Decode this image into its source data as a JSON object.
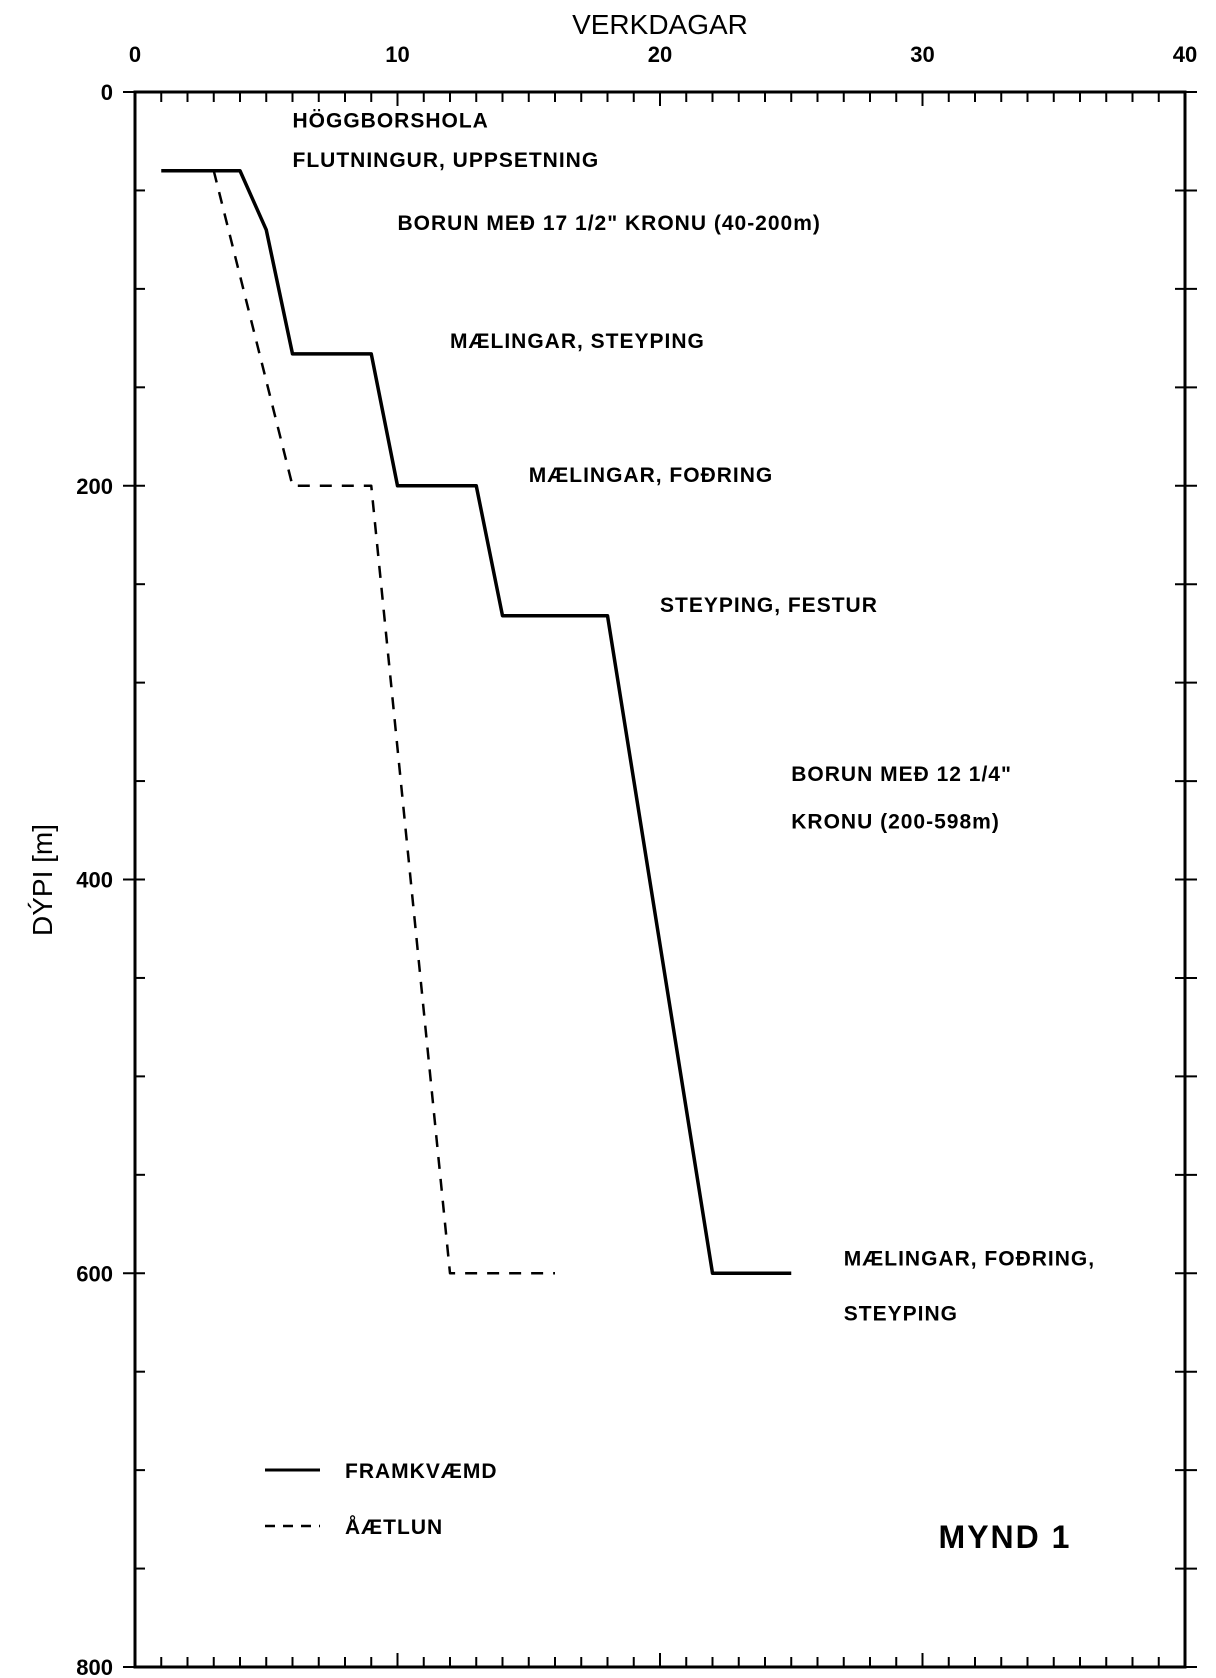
{
  "chart_data": {
    "type": "line",
    "title": "",
    "xlabel": "VERKDAGAR",
    "ylabel": "DÝPI [m]",
    "xlim": [
      0,
      40
    ],
    "ylim": [
      0,
      800
    ],
    "y_inverted": true,
    "x_axis_position": "top",
    "x_ticks": [
      0,
      10,
      20,
      30,
      40
    ],
    "y_ticks": [
      0,
      200,
      400,
      600,
      800
    ],
    "x_tick_labels": [
      "0",
      "10",
      "20",
      "30",
      "40"
    ],
    "y_tick_labels": [
      "0",
      "200",
      "400",
      "600",
      "800"
    ],
    "grid": false,
    "legend_position": "bottom-left",
    "series": [
      {
        "name": "FRAMKVÆMD",
        "style": "solid",
        "x": [
          1,
          4,
          5,
          6,
          9,
          10,
          13,
          14,
          18,
          22,
          25
        ],
        "y": [
          40,
          40,
          70,
          133,
          133,
          200,
          200,
          266,
          266,
          600,
          600
        ]
      },
      {
        "name": "ÅÆTLUN",
        "style": "dashed",
        "x": [
          3,
          6,
          9,
          12,
          16
        ],
        "y": [
          40,
          200,
          200,
          600,
          600
        ]
      }
    ],
    "annotations": [
      {
        "text": "HÖGGBORSHOLA",
        "x": 6,
        "y": 18
      },
      {
        "text": "FLUTNINGUR, UPPSETNING",
        "x": 6,
        "y": 38
      },
      {
        "text": "BORUN MEÐ 17 1/2\" KRONU (40-200m)",
        "x": 10,
        "y": 70
      },
      {
        "text": "MÆLINGAR, STEYPING",
        "x": 12,
        "y": 130
      },
      {
        "text": "MÆLINGAR, FOÐRING",
        "x": 15,
        "y": 198
      },
      {
        "text": "STEYPING, FESTUR",
        "x": 20,
        "y": 264
      },
      {
        "text": "BORUN MEÐ 12 1/4\"",
        "x": 25,
        "y": 350
      },
      {
        "text": "KRONU (200-598m)",
        "x": 25,
        "y": 374
      },
      {
        "text": "MÆLINGAR, FOÐRING,",
        "x": 27,
        "y": 596
      },
      {
        "text": "STEYPING",
        "x": 27,
        "y": 624
      }
    ]
  },
  "figure_label": "MYND 1"
}
